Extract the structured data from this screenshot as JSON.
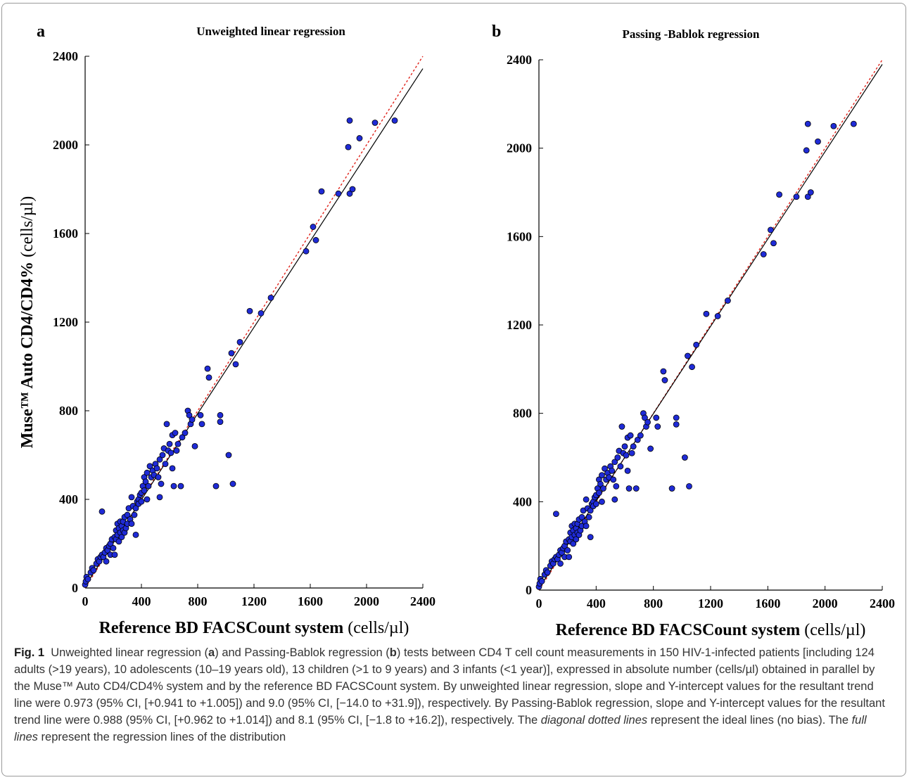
{
  "chart_data": [
    {
      "panel_label": "a",
      "type": "scatter",
      "title": "Unweighted linear regression",
      "xlabel": "Reference BD FACSCount system",
      "xlabel_unit": "(cells/µl)",
      "ylabel": "Muse™ Auto CD4/CD4%",
      "ylabel_unit": "(cells/µl)",
      "xlim": [
        0,
        2400
      ],
      "ylim": [
        0,
        2400
      ],
      "xticks": [
        "0",
        "400",
        "800",
        "1200",
        "1600",
        "2000",
        "2400"
      ],
      "yticks": [
        "0",
        "400",
        "800",
        "1200",
        "1600",
        "2000",
        "2400"
      ],
      "grid": false,
      "regression_line": {
        "slope": 0.973,
        "intercept": 9.0,
        "style": "solid",
        "color": "#000000"
      },
      "identity_line": {
        "slope": 1.0,
        "intercept": 0,
        "style": "dotted",
        "color": "#e0221a"
      },
      "marker_color": "#1f2bd6",
      "points": [
        [
          0,
          15
        ],
        [
          5,
          30
        ],
        [
          10,
          50
        ],
        [
          20,
          40
        ],
        [
          40,
          70
        ],
        [
          50,
          90
        ],
        [
          60,
          80
        ],
        [
          80,
          110
        ],
        [
          90,
          130
        ],
        [
          100,
          120
        ],
        [
          110,
          140
        ],
        [
          120,
          150
        ],
        [
          120,
          345
        ],
        [
          130,
          140
        ],
        [
          140,
          160
        ],
        [
          150,
          180
        ],
        [
          150,
          120
        ],
        [
          160,
          170
        ],
        [
          170,
          190
        ],
        [
          180,
          200
        ],
        [
          180,
          150
        ],
        [
          190,
          220
        ],
        [
          200,
          180
        ],
        [
          210,
          230
        ],
        [
          210,
          150
        ],
        [
          220,
          260
        ],
        [
          220,
          220
        ],
        [
          230,
          240
        ],
        [
          230,
          290
        ],
        [
          240,
          210
        ],
        [
          240,
          270
        ],
        [
          250,
          250
        ],
        [
          250,
          300
        ],
        [
          260,
          230
        ],
        [
          260,
          280
        ],
        [
          270,
          260
        ],
        [
          270,
          300
        ],
        [
          280,
          250
        ],
        [
          280,
          320
        ],
        [
          290,
          270
        ],
        [
          300,
          330
        ],
        [
          300,
          290
        ],
        [
          310,
          360
        ],
        [
          320,
          310
        ],
        [
          330,
          290
        ],
        [
          330,
          410
        ],
        [
          340,
          370
        ],
        [
          350,
          330
        ],
        [
          360,
          360
        ],
        [
          360,
          240
        ],
        [
          370,
          390
        ],
        [
          380,
          400
        ],
        [
          380,
          380
        ],
        [
          390,
          420
        ],
        [
          400,
          430
        ],
        [
          400,
          390
        ],
        [
          410,
          460
        ],
        [
          420,
          440
        ],
        [
          420,
          500
        ],
        [
          430,
          480
        ],
        [
          440,
          400
        ],
        [
          440,
          520
        ],
        [
          450,
          460
        ],
        [
          460,
          550
        ],
        [
          470,
          500
        ],
        [
          480,
          530
        ],
        [
          490,
          510
        ],
        [
          500,
          560
        ],
        [
          510,
          540
        ],
        [
          520,
          500
        ],
        [
          530,
          580
        ],
        [
          530,
          410
        ],
        [
          540,
          470
        ],
        [
          550,
          600
        ],
        [
          560,
          630
        ],
        [
          570,
          560
        ],
        [
          580,
          740
        ],
        [
          590,
          620
        ],
        [
          600,
          650
        ],
        [
          610,
          610
        ],
        [
          620,
          540
        ],
        [
          620,
          690
        ],
        [
          630,
          460
        ],
        [
          640,
          700
        ],
        [
          650,
          620
        ],
        [
          660,
          650
        ],
        [
          680,
          460
        ],
        [
          690,
          680
        ],
        [
          710,
          700
        ],
        [
          730,
          800
        ],
        [
          740,
          780
        ],
        [
          750,
          740
        ],
        [
          760,
          760
        ],
        [
          780,
          640
        ],
        [
          820,
          780
        ],
        [
          830,
          740
        ],
        [
          870,
          990
        ],
        [
          880,
          950
        ],
        [
          930,
          460
        ],
        [
          960,
          780
        ],
        [
          960,
          750
        ],
        [
          1020,
          600
        ],
        [
          1040,
          1060
        ],
        [
          1050,
          470
        ],
        [
          1070,
          1010
        ],
        [
          1100,
          1110
        ],
        [
          1170,
          1250
        ],
        [
          1250,
          1240
        ],
        [
          1320,
          1310
        ],
        [
          1570,
          1520
        ],
        [
          1620,
          1630
        ],
        [
          1640,
          1570
        ],
        [
          1680,
          1790
        ],
        [
          1800,
          1780
        ],
        [
          1870,
          1990
        ],
        [
          1880,
          2110
        ],
        [
          1880,
          1780
        ],
        [
          1900,
          1800
        ],
        [
          1950,
          2030
        ],
        [
          2060,
          2100
        ],
        [
          2200,
          2110
        ]
      ]
    },
    {
      "panel_label": "b",
      "type": "scatter",
      "title": "Passing -Bablok regression",
      "xlabel": "Reference BD FACSCount system",
      "xlabel_unit": "(cells/µl)",
      "xlim": [
        0,
        2400
      ],
      "ylim": [
        0,
        2400
      ],
      "xticks": [
        "0",
        "400",
        "800",
        "1200",
        "1600",
        "2000",
        "2400"
      ],
      "yticks": [
        "0",
        "400",
        "800",
        "1200",
        "1600",
        "2000",
        "2400"
      ],
      "grid": false,
      "regression_line": {
        "slope": 0.988,
        "intercept": 8.1,
        "style": "solid",
        "color": "#000000"
      },
      "identity_line": {
        "slope": 1.0,
        "intercept": 0,
        "style": "dotted",
        "color": "#e0221a"
      },
      "marker_color": "#1f2bd6",
      "points": [
        [
          0,
          15
        ],
        [
          5,
          30
        ],
        [
          10,
          50
        ],
        [
          20,
          40
        ],
        [
          40,
          70
        ],
        [
          50,
          90
        ],
        [
          60,
          80
        ],
        [
          80,
          110
        ],
        [
          90,
          130
        ],
        [
          100,
          120
        ],
        [
          110,
          140
        ],
        [
          120,
          150
        ],
        [
          120,
          345
        ],
        [
          130,
          140
        ],
        [
          140,
          160
        ],
        [
          150,
          180
        ],
        [
          150,
          120
        ],
        [
          160,
          170
        ],
        [
          170,
          190
        ],
        [
          180,
          200
        ],
        [
          180,
          150
        ],
        [
          190,
          220
        ],
        [
          200,
          180
        ],
        [
          210,
          230
        ],
        [
          210,
          150
        ],
        [
          220,
          260
        ],
        [
          220,
          220
        ],
        [
          230,
          240
        ],
        [
          230,
          290
        ],
        [
          240,
          210
        ],
        [
          240,
          270
        ],
        [
          250,
          250
        ],
        [
          250,
          300
        ],
        [
          260,
          230
        ],
        [
          260,
          280
        ],
        [
          270,
          260
        ],
        [
          270,
          300
        ],
        [
          280,
          250
        ],
        [
          280,
          320
        ],
        [
          290,
          270
        ],
        [
          300,
          330
        ],
        [
          300,
          290
        ],
        [
          310,
          360
        ],
        [
          320,
          310
        ],
        [
          330,
          290
        ],
        [
          330,
          410
        ],
        [
          340,
          370
        ],
        [
          350,
          330
        ],
        [
          360,
          360
        ],
        [
          360,
          240
        ],
        [
          370,
          390
        ],
        [
          380,
          400
        ],
        [
          380,
          380
        ],
        [
          390,
          420
        ],
        [
          400,
          430
        ],
        [
          400,
          390
        ],
        [
          410,
          460
        ],
        [
          420,
          440
        ],
        [
          420,
          500
        ],
        [
          430,
          480
        ],
        [
          440,
          400
        ],
        [
          440,
          520
        ],
        [
          450,
          460
        ],
        [
          460,
          550
        ],
        [
          470,
          500
        ],
        [
          480,
          530
        ],
        [
          490,
          510
        ],
        [
          500,
          560
        ],
        [
          510,
          540
        ],
        [
          520,
          500
        ],
        [
          530,
          580
        ],
        [
          530,
          410
        ],
        [
          540,
          470
        ],
        [
          550,
          600
        ],
        [
          560,
          630
        ],
        [
          570,
          560
        ],
        [
          580,
          740
        ],
        [
          590,
          620
        ],
        [
          600,
          650
        ],
        [
          610,
          610
        ],
        [
          620,
          540
        ],
        [
          620,
          690
        ],
        [
          630,
          460
        ],
        [
          640,
          700
        ],
        [
          650,
          620
        ],
        [
          660,
          650
        ],
        [
          680,
          460
        ],
        [
          690,
          680
        ],
        [
          710,
          700
        ],
        [
          730,
          800
        ],
        [
          740,
          780
        ],
        [
          750,
          740
        ],
        [
          760,
          760
        ],
        [
          780,
          640
        ],
        [
          820,
          780
        ],
        [
          830,
          740
        ],
        [
          870,
          990
        ],
        [
          880,
          950
        ],
        [
          930,
          460
        ],
        [
          960,
          780
        ],
        [
          960,
          750
        ],
        [
          1020,
          600
        ],
        [
          1040,
          1060
        ],
        [
          1050,
          470
        ],
        [
          1070,
          1010
        ],
        [
          1100,
          1110
        ],
        [
          1170,
          1250
        ],
        [
          1250,
          1240
        ],
        [
          1320,
          1310
        ],
        [
          1570,
          1520
        ],
        [
          1620,
          1630
        ],
        [
          1640,
          1570
        ],
        [
          1680,
          1790
        ],
        [
          1800,
          1780
        ],
        [
          1870,
          1990
        ],
        [
          1880,
          2110
        ],
        [
          1880,
          1780
        ],
        [
          1900,
          1800
        ],
        [
          1950,
          2030
        ],
        [
          2060,
          2100
        ],
        [
          2200,
          2110
        ]
      ]
    }
  ],
  "caption": {
    "fig_label": "Fig. 1",
    "t1": "Unweighted linear regression (",
    "t2": "a",
    "t3": ") and Passing-Bablok regression (",
    "t4": "b",
    "t5": ") tests between CD4 T cell count measurements in 150 HIV-1-infected patients [including 124 adults (>19 years), 10 adolescents (10–19 years old), 13 children (>1 to 9 years) and 3 infants (<1 year)], expressed in absolute number (cells/µl) obtained in parallel by the Muse™ Auto CD4/CD4% system and by the reference BD FACSCount system. By unweighted linear regression, slope and Y-intercept values for the resultant trend line were 0.973 (95% CI, [+0.941 to +1.005]) and 9.0 (95% CI, [−14.0 to +31.9]), respectively. By Passing-Bablok regression, slope and Y-intercept values for the resultant trend line were 0.988 (95% CI, [+0.962 to +1.014]) and 8.1 (95% CI, [−1.8 to +16.2]), respectively. The ",
    "t6": "diagonal dotted lines",
    "t7": " represent the ideal lines (no bias). The ",
    "t8": "full lines",
    "t9": " represent the regression lines of the distribution"
  }
}
